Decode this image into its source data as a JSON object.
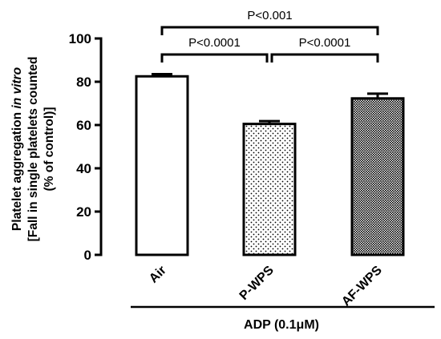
{
  "chart_data": {
    "type": "bar",
    "categories": [
      "Air",
      "P-WPS",
      "AF-WPS"
    ],
    "values": [
      82.5,
      60.5,
      72.3
    ],
    "errors": [
      1.0,
      1.3,
      2.2
    ],
    "ylim": [
      0,
      100
    ],
    "yticks": [
      "0",
      "20",
      "40",
      "60",
      "80",
      "100"
    ],
    "ylabel_line1": "Platelet aggregation ",
    "ylabel_line1_italic": "in vitro",
    "ylabel_line2": "[Fall in single platelets counted",
    "ylabel_line3": "(% of control)]",
    "xgroup_label": "ADP (0.1μM)",
    "bar_fills": [
      "white",
      "fine-dots",
      "dense-dots"
    ],
    "annotations": [
      {
        "from": "Air",
        "to": "P-WPS",
        "text": "P<0.0001"
      },
      {
        "from": "P-WPS",
        "to": "AF-WPS",
        "text": "P<0.0001"
      },
      {
        "from": "Air",
        "to": "AF-WPS",
        "text": "P<0.001"
      }
    ]
  }
}
